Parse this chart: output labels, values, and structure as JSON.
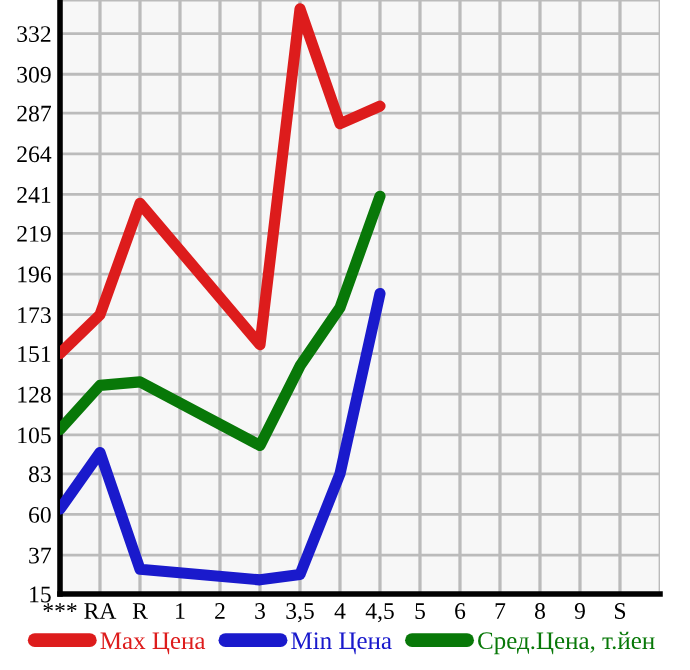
{
  "chart_data": {
    "type": "line",
    "categories": [
      "***",
      "RA",
      "R",
      "1",
      "2",
      "3",
      "3,5",
      "4",
      "4,5",
      "5",
      "6",
      "7",
      "8",
      "9",
      "S"
    ],
    "series": [
      {
        "name": "Max Цена",
        "color": "#dd1c1c",
        "values": [
          151,
          173,
          236,
          null,
          null,
          156,
          346,
          281,
          291,
          null,
          null,
          null,
          null,
          null,
          null
        ]
      },
      {
        "name": "Min Цена",
        "color": "#1a1acc",
        "values": [
          63,
          95,
          29,
          null,
          null,
          23,
          26,
          83,
          185,
          null,
          null,
          null,
          null,
          null,
          null
        ]
      },
      {
        "name": "Сред.Цена, т.йен",
        "color": "#087808",
        "values": [
          108,
          133,
          135,
          null,
          null,
          99,
          144,
          177,
          240,
          null,
          null,
          null,
          null,
          null,
          null
        ]
      }
    ],
    "ylim": [
      15,
      351
    ],
    "yticks": [
      15,
      37,
      60,
      83,
      105,
      128,
      151,
      173,
      196,
      219,
      241,
      264,
      287,
      309,
      332
    ],
    "grid": true,
    "legend": "bottom",
    "marker": "none",
    "line_style": "solid"
  }
}
